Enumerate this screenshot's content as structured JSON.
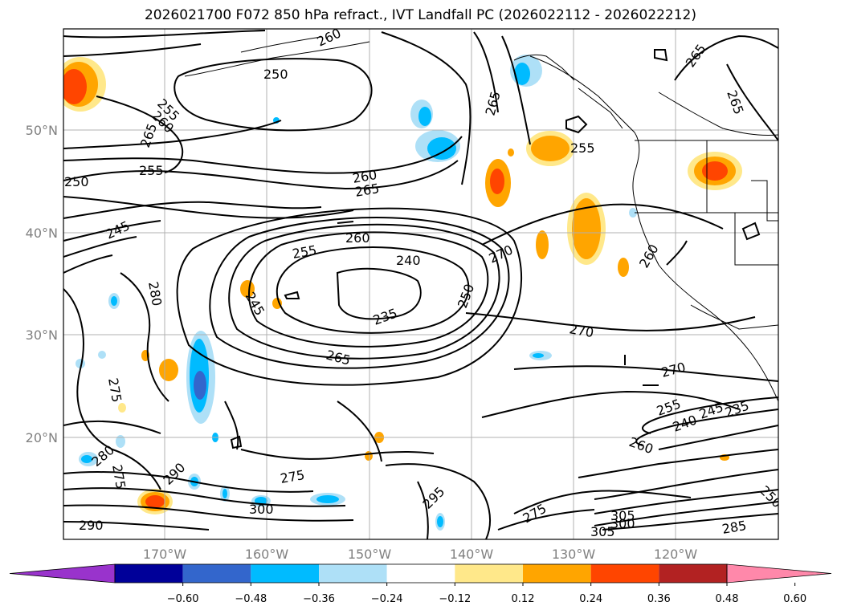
{
  "title": "2026021700 F072 850 hPa refract., IVT Landfall PC (2026022112 - 2026022212)",
  "lat_labels": [
    "50°N",
    "40°N",
    "30°N",
    "20°N"
  ],
  "lon_labels": [
    "170°W",
    "160°W",
    "150°W",
    "140°W",
    "130°W",
    "120°W"
  ],
  "contour_labels": [
    "260",
    "250",
    "255",
    "260",
    "265",
    "265",
    "255",
    "250",
    "245",
    "260",
    "265",
    "260",
    "255",
    "240",
    "235",
    "250",
    "270",
    "245",
    "280",
    "265",
    "270",
    "270",
    "275",
    "255",
    "240",
    "245",
    "235",
    "260",
    "275",
    "280",
    "275",
    "290",
    "300",
    "295",
    "275",
    "305",
    "300",
    "305",
    "285",
    "290",
    "265",
    "265",
    "260",
    "250",
    "255"
  ],
  "colorbar": {
    "ticks": [
      "−0.60",
      "−0.48",
      "−0.36",
      "−0.24",
      "−0.12",
      "0.12",
      "0.24",
      "0.36",
      "0.48",
      "0.60"
    ],
    "colors": [
      "#9933cc",
      "#000099",
      "#3366cc",
      "#00bbff",
      "#aee0f7",
      "#ffffff",
      "#ffe88a",
      "#ffa500",
      "#ff4500",
      "#b22222",
      "#ff88aa"
    ]
  }
}
